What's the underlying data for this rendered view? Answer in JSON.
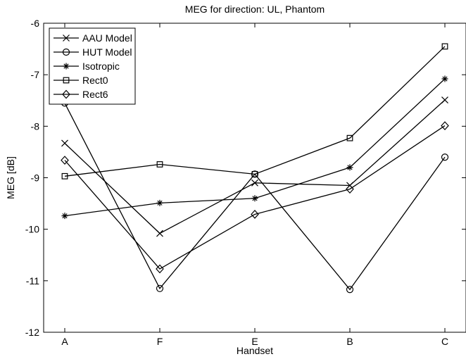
{
  "chart_data": {
    "type": "line",
    "title": "MEG for direction: UL, Phantom",
    "xlabel": "Handset",
    "ylabel": "MEG [dB]",
    "categories": [
      "A",
      "F",
      "E",
      "B",
      "C"
    ],
    "ylim": [
      -12,
      -6
    ],
    "yticks": [
      "-12",
      "-11",
      "-10",
      "-9",
      "-8",
      "-7",
      "-6"
    ],
    "grid": false,
    "legend_position": "top-left",
    "series": [
      {
        "name": "AAU Model",
        "marker": "x",
        "values": [
          -8.33,
          -10.08,
          -9.1,
          -9.15,
          -7.49
        ],
        "color": "#000000"
      },
      {
        "name": "HUT Model",
        "marker": "circle",
        "values": [
          -7.55,
          -11.15,
          -8.93,
          -11.17,
          -8.6
        ],
        "color": "#000000"
      },
      {
        "name": "Isotropic",
        "marker": "star",
        "values": [
          -9.74,
          -9.49,
          -9.4,
          -8.8,
          -7.08
        ],
        "color": "#000000"
      },
      {
        "name": "Rect0",
        "marker": "square",
        "values": [
          -8.97,
          -8.74,
          -8.93,
          -8.23,
          -6.45
        ],
        "color": "#000000"
      },
      {
        "name": "Rect6",
        "marker": "diamond",
        "values": [
          -8.66,
          -10.77,
          -9.71,
          -9.22,
          -7.99
        ],
        "color": "#000000"
      }
    ]
  }
}
